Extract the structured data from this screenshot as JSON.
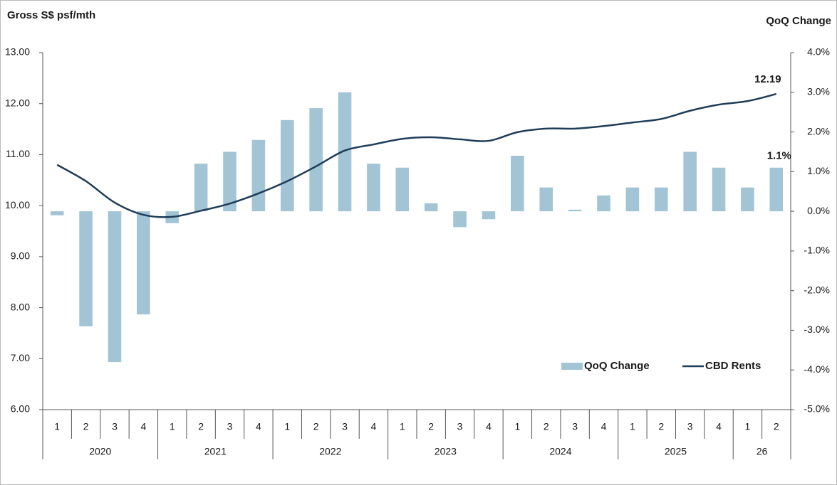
{
  "chart_data": {
    "type": "bar-line",
    "y_title": "Gross S$ psf/mth",
    "y2_title": "QoQ Change",
    "category_groups": [
      {
        "name": "2020",
        "categories": [
          "1",
          "2",
          "3",
          "4"
        ]
      },
      {
        "name": "2021",
        "categories": [
          "1",
          "2",
          "3",
          "4"
        ]
      },
      {
        "name": "2022",
        "categories": [
          "1",
          "2",
          "3",
          "4"
        ]
      },
      {
        "name": "2023",
        "categories": [
          "1",
          "2",
          "3",
          "4"
        ]
      },
      {
        "name": "2024",
        "categories": [
          "1",
          "2",
          "3",
          "4"
        ]
      },
      {
        "name": "2025",
        "categories": [
          "1",
          "2",
          "3",
          "4"
        ]
      },
      {
        "name": "26",
        "categories": [
          "1",
          "2"
        ]
      }
    ],
    "series": [
      {
        "name": "QoQ Change",
        "type": "bar",
        "axis": "y2",
        "color": "#a2c4d4",
        "values": [
          -0.1,
          -2.9,
          -3.8,
          -2.6,
          -0.3,
          1.2,
          1.5,
          1.8,
          2.3,
          2.6,
          3.0,
          1.2,
          1.1,
          0.2,
          -0.4,
          -0.2,
          1.4,
          0.6,
          0.04,
          0.4,
          0.6,
          0.6,
          1.5,
          1.1,
          0.6,
          1.1
        ],
        "value_labels": [
          null,
          null,
          null,
          null,
          null,
          null,
          null,
          null,
          null,
          null,
          null,
          null,
          null,
          null,
          null,
          null,
          null,
          null,
          null,
          null,
          null,
          null,
          null,
          null,
          null,
          "1.1%"
        ]
      },
      {
        "name": "CBD Rents",
        "type": "line",
        "axis": "y",
        "color": "#1f3d58",
        "values": [
          10.8,
          10.48,
          10.06,
          9.82,
          9.78,
          9.9,
          10.04,
          10.24,
          10.48,
          10.77,
          11.08,
          11.2,
          11.31,
          11.34,
          11.3,
          11.27,
          11.44,
          11.51,
          11.51,
          11.56,
          11.63,
          11.7,
          11.86,
          11.98,
          12.05,
          12.19
        ],
        "labeled_points": [
          25
        ]
      }
    ],
    "ylim": [
      6,
      13
    ],
    "yticks": [
      {
        "value": 6,
        "label": "6.00"
      },
      {
        "value": 7,
        "label": "7.00"
      },
      {
        "value": 8,
        "label": "8.00"
      },
      {
        "value": 9,
        "label": "9.00"
      },
      {
        "value": 10,
        "label": "10.00"
      },
      {
        "value": 11,
        "label": "11.00"
      },
      {
        "value": 12,
        "label": "12.00"
      },
      {
        "value": 13,
        "label": "13.00"
      }
    ],
    "y2lim": [
      -5,
      4
    ],
    "y2ticks": [
      {
        "value": -5,
        "label": "-5.0%"
      },
      {
        "value": -4,
        "label": "-4.0%"
      },
      {
        "value": -3,
        "label": "-3.0%"
      },
      {
        "value": -2,
        "label": "-2.0%"
      },
      {
        "value": -1,
        "label": "-1.0%"
      },
      {
        "value": 0,
        "label": "0.0%"
      },
      {
        "value": 1,
        "label": "1.0%"
      },
      {
        "value": 2,
        "label": "2.0%"
      },
      {
        "value": 3,
        "label": "3.0%"
      },
      {
        "value": 4,
        "label": "4.0%"
      }
    ],
    "grid": false,
    "legend": "lower right"
  }
}
